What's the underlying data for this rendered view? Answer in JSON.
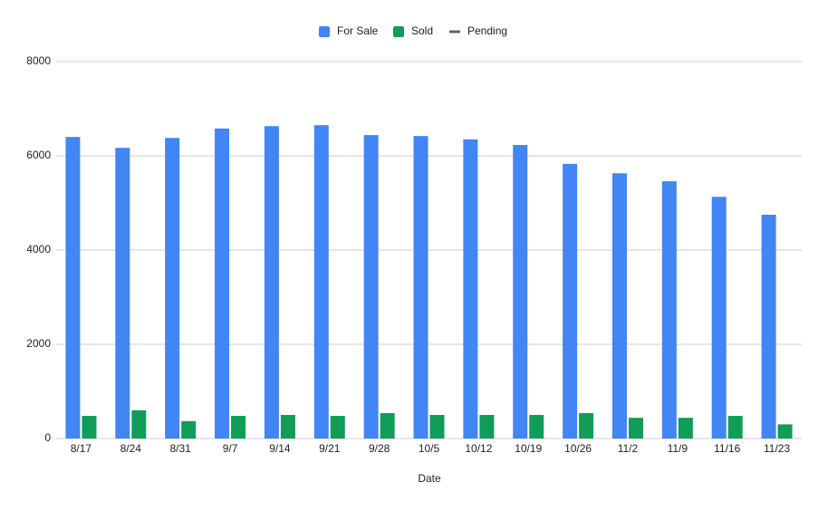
{
  "chart_data": {
    "type": "bar",
    "x_label": "Date",
    "categories": [
      "8/17",
      "8/24",
      "8/31",
      "9/7",
      "9/14",
      "9/21",
      "9/28",
      "10/5",
      "10/12",
      "10/19",
      "10/26",
      "11/2",
      "11/9",
      "11/16",
      "11/23"
    ],
    "series": [
      {
        "name": "For Sale",
        "color": "#4285f4",
        "values": [
          6400,
          6170,
          6380,
          6580,
          6630,
          6650,
          6440,
          6420,
          6350,
          6230,
          5830,
          5630,
          5460,
          5130,
          4750
        ]
      },
      {
        "name": "Sold",
        "color": "#0f9d58",
        "values": [
          480,
          600,
          370,
          480,
          500,
          480,
          540,
          500,
          500,
          500,
          540,
          440,
          440,
          480,
          300
        ]
      },
      {
        "name": "Pending",
        "color": "#666666",
        "type": "line",
        "values": [
          null,
          null,
          null,
          null,
          null,
          null,
          null,
          null,
          null,
          null,
          null,
          null,
          null,
          null,
          null
        ]
      }
    ],
    "ylim": [
      0,
      8000
    ],
    "yticks": [
      0,
      2000,
      4000,
      6000,
      8000
    ],
    "grid": true,
    "legend": "top"
  }
}
